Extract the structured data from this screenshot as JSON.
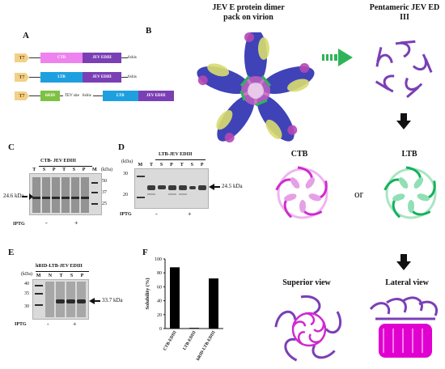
{
  "panels": {
    "a": "A",
    "b": "B",
    "c": "C",
    "d": "D",
    "e": "E",
    "f": "F"
  },
  "constructs": [
    {
      "promoter": "T7",
      "parts": [
        "CTB",
        "JEV EDIII"
      ],
      "tag": "6xhis"
    },
    {
      "promoter": "T7",
      "parts": [
        "LTB",
        "JEV EDIII"
      ],
      "tag": "6xhis"
    },
    {
      "promoter": "T7",
      "parts": [
        "hRID",
        "LTB",
        "JEV EDIII"
      ],
      "linker": "TEV site",
      "linker_tag": "6xhis"
    }
  ],
  "structures": {
    "dimer_title": "JEV E protein dimer pack on virion",
    "pentamer_title": "Pentameric JEV ED III",
    "ctb": "CTB",
    "ltb": "LTB",
    "or": "or",
    "superior": "Superior view",
    "lateral": "Lateral view"
  },
  "gel_c": {
    "title": "CTB- JEV EDIII",
    "lanes": [
      "T",
      "S",
      "P",
      "T",
      "S",
      "P",
      "M"
    ],
    "units": "(kDa)",
    "markers": [
      "50",
      "37",
      "25"
    ],
    "band": "24.6 kDa",
    "iptg": "IPTG",
    "minus": "-",
    "plus": "+"
  },
  "gel_d": {
    "title": "LTB-JEV EDIII",
    "lanes": [
      "M",
      "T",
      "S",
      "P",
      "T",
      "S",
      "P"
    ],
    "units": "(kDa)",
    "markers": [
      "30",
      "20"
    ],
    "band": "24.5 kDa",
    "iptg": "IPTG",
    "minus": "-",
    "plus": "+"
  },
  "gel_e": {
    "title": "hRID-LTB-JEV EDIII",
    "units": "(kDa)",
    "lanes": [
      "M",
      "N",
      "T",
      "S",
      "P"
    ],
    "markers": [
      "40",
      "35",
      "30"
    ],
    "band": "33.7 kDa",
    "iptg": "IPTG",
    "minus": "-",
    "plus": "+"
  },
  "chart_data": {
    "type": "bar",
    "categories": [
      "CTB-EDIII",
      "LTB-EDIII",
      "hRID-LTB-EDIII"
    ],
    "values": [
      88,
      1,
      72
    ],
    "xlabel": "",
    "ylabel": "Solubility (%)",
    "ylim": [
      0,
      100
    ],
    "yticks": [
      "0",
      "20",
      "40",
      "60",
      "80",
      "100"
    ],
    "grid": false,
    "colors": {
      "bar": "#000000"
    }
  },
  "colors": {
    "ctb": "#ee82ee",
    "ltb": "#1ea0e0",
    "edIII": "#7a3fb5",
    "hrid": "#7ec242",
    "t7": "#f3d088",
    "green_arrow": "#2fb35a"
  }
}
